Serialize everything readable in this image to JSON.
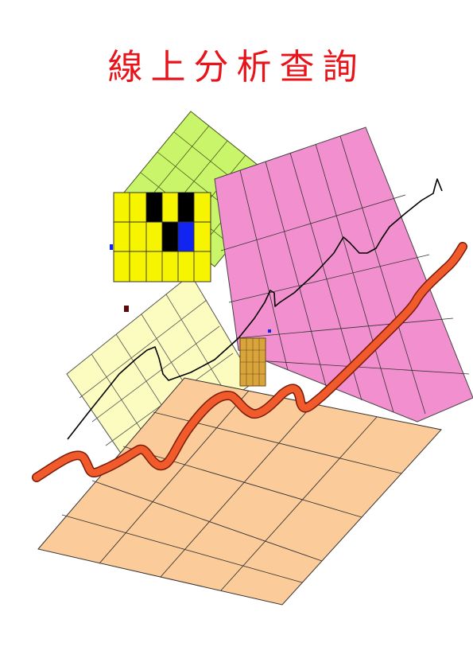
{
  "cover": {
    "title": "線上分析查詢"
  },
  "illustration": {
    "description_icon": "rising-chart-collage-illustration",
    "colors": {
      "title": "#e8141b",
      "green_panel": "#c9f56a",
      "pink_panel": "#f28fce",
      "cream_panel": "#fdfcc0",
      "peach_panel": "#fccb9a",
      "yellow_grid": "#f7f400",
      "black_cell": "#000000",
      "blue_cell": "#1225f0",
      "trend_line_orange": "#f15a2b",
      "trend_line_black": "#000000"
    }
  }
}
